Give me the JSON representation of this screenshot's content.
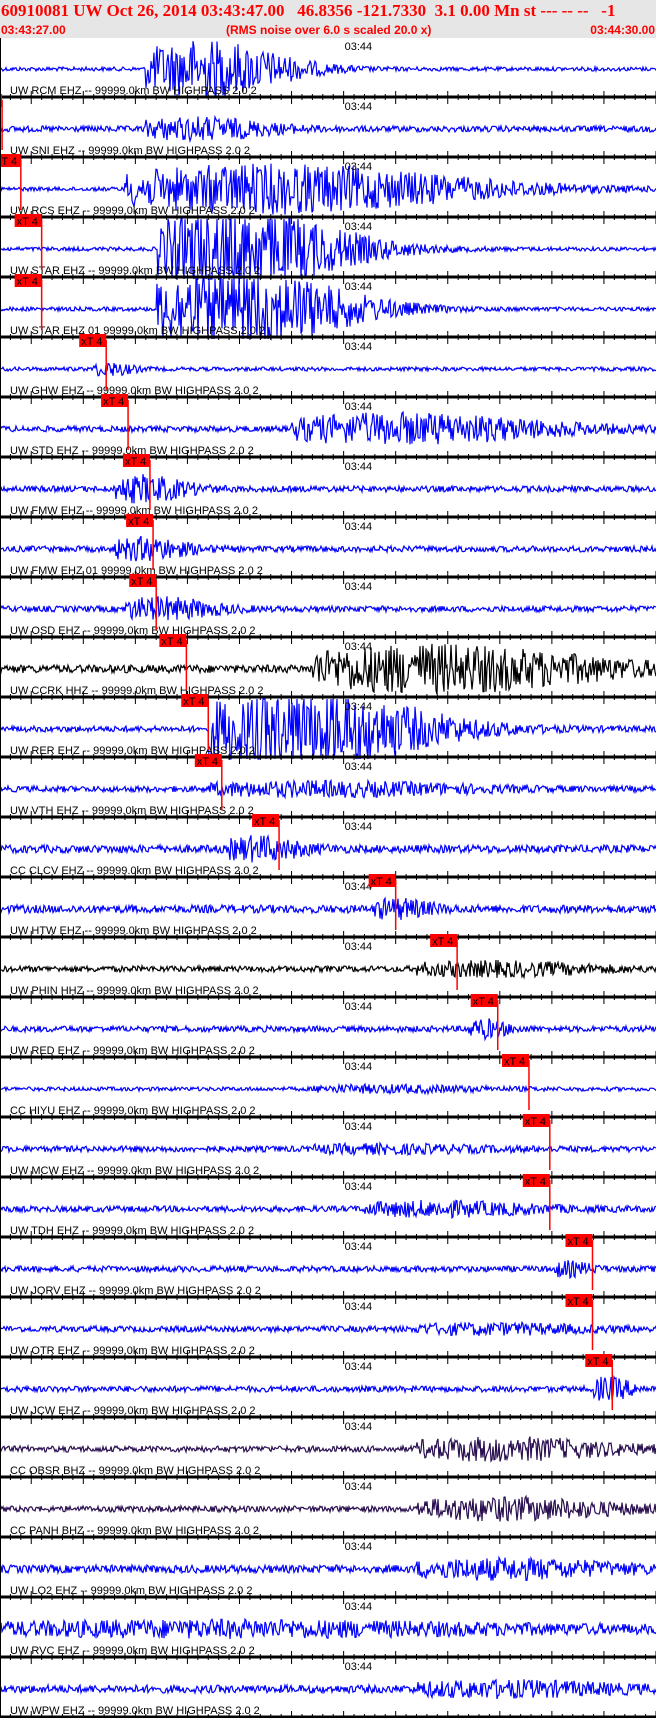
{
  "header": {
    "title": "60910081 UW Oct 26, 2014 03:43:47.00   46.8356 -121.7330  3.1 0.00 Mn st --- -- --   -1",
    "start_time": "03:43:27.00",
    "end_time": "03:44:30.00",
    "note": "(RMS noise over 6.0 s scaled 20.0 x)"
  },
  "chart_data": {
    "type": "line",
    "title": "60910081 UW Oct 26, 2014 03:43:47.00   46.8356 -121.7330  3.1 0.00 Mn st --- -- --   -1",
    "x_range": [
      "03:43:27.00",
      "03:44:30.00"
    ],
    "x_tick_label": "03:44",
    "pick_label": "xT 4",
    "colors": {
      "header_text": "#ff0000",
      "pick": "#ff0000",
      "trace_blue": "#0000ff",
      "trace_black": "#000000",
      "trace_purple": "#2a1050"
    },
    "traces": [
      {
        "label": "UW RCM EHZ -- 99999.0km BW  HIGHPASS  2.0  2",
        "color": "#0000ff",
        "pick": null
      },
      {
        "label": "UW SNI EHZ -- 99999.0km BW  HIGHPASS  2.0  2",
        "color": "#0000ff",
        "pick": "03:43:27.2"
      },
      {
        "label": "UW RCS EHZ -- 99999.0km BW  HIGHPASS  2.0  2",
        "color": "#0000ff",
        "pick": "03:43:29.0"
      },
      {
        "label": "UW STAR EHZ -- 99999.0km BW  HIGHPASS  2.0  2",
        "color": "#0000ff",
        "pick": "03:43:31.0"
      },
      {
        "label": "UW STAR EHZ 01 99999.0km BW  HIGHPASS  2.0  2",
        "color": "#0000ff",
        "pick": "03:43:31.0"
      },
      {
        "label": "UW GHW EHZ -- 99999.0km BW  HIGHPASS  2.0  2",
        "color": "#0000ff",
        "pick": "03:43:37.2"
      },
      {
        "label": "UW STD EHZ -- 99999.0km BW  HIGHPASS  2.0  2",
        "color": "#0000ff",
        "pick": "03:43:39.3"
      },
      {
        "label": "UW FMW EHZ -- 99999.0km BW  HIGHPASS  2.0  2",
        "color": "#0000ff",
        "pick": "03:43:41.4"
      },
      {
        "label": "UW FMW EHZ 01 99999.0km BW  HIGHPASS  2.0  2",
        "color": "#0000ff",
        "pick": "03:43:41.7"
      },
      {
        "label": "UW OSD EHZ -- 99999.0km BW  HIGHPASS  2.0  2",
        "color": "#0000ff",
        "pick": "03:43:42.0"
      },
      {
        "label": "UW CCRK HHZ -- 99999.0km BW  HIGHPASS  2.0  2",
        "color": "#000000",
        "pick": "03:43:44.9"
      },
      {
        "label": "UW RER EHZ -- 99999.0km BW  HIGHPASS  2.0  2",
        "color": "#0000ff",
        "pick": "03:43:47.0"
      },
      {
        "label": "UW VTH EHZ -- 99999.0km BW  HIGHPASS  2.0  2",
        "color": "#0000ff",
        "pick": "03:43:48.3"
      },
      {
        "label": "CC CLCV EHZ -- 99999.0km BW  HIGHPASS  2.0  2",
        "color": "#0000ff",
        "pick": "03:43:53.8"
      },
      {
        "label": "UW HTW EHZ -- 99999.0km BW  HIGHPASS  2.0  2",
        "color": "#0000ff",
        "pick": "03:44:05.0"
      },
      {
        "label": "UW PHIN HHZ -- 99999.0km BW  HIGHPASS  2.0  2",
        "color": "#000000",
        "pick": "03:44:10.9"
      },
      {
        "label": "UW RED EHZ -- 99999.0km BW  HIGHPASS  2.0  2",
        "color": "#0000ff",
        "pick": "03:44:14.8"
      },
      {
        "label": "CC HIYU EHZ -- 99999.0km BW  HIGHPASS  2.0  2",
        "color": "#0000ff",
        "pick": "03:44:17.8"
      },
      {
        "label": "UW MCW EHZ -- 99999.0km BW  HIGHPASS  2.0  2",
        "color": "#0000ff",
        "pick": "03:44:19.8"
      },
      {
        "label": "UW TDH EHZ -- 99999.0km BW  HIGHPASS  2.0  2",
        "color": "#0000ff",
        "pick": "03:44:19.8"
      },
      {
        "label": "UW JORV EHZ -- 99999.0km BW  HIGHPASS  2.0  2",
        "color": "#0000ff",
        "pick": "03:44:23.9"
      },
      {
        "label": "UW OTR EHZ -- 99999.0km BW  HIGHPASS  2.0  2",
        "color": "#0000ff",
        "pick": "03:44:23.9"
      },
      {
        "label": "UW JCW EHZ -- 99999.0km BW  HIGHPASS  2.0  2",
        "color": "#0000ff",
        "pick": "03:44:25.8"
      },
      {
        "label": "CC OBSR BHZ -- 99999.0km BW  HIGHPASS  2.0  2",
        "color": "#2a1050",
        "pick": null
      },
      {
        "label": "CC PANH BHZ -- 99999.0km BW  HIGHPASS  2.0  2",
        "color": "#2a1050",
        "pick": null
      },
      {
        "label": "UW LO2 EHZ -- 99999.0km BW  HIGHPASS  2.0  2",
        "color": "#0000ff",
        "pick": null
      },
      {
        "label": "UW RVC EHZ -- 99999.0km BW  HIGHPASS  2.0  2",
        "color": "#0000ff",
        "pick": null
      },
      {
        "label": "UW WPW EHZ -- 99999.0km BW  HIGHPASS  2.0  2",
        "color": "#0000ff",
        "pick": null
      }
    ]
  }
}
